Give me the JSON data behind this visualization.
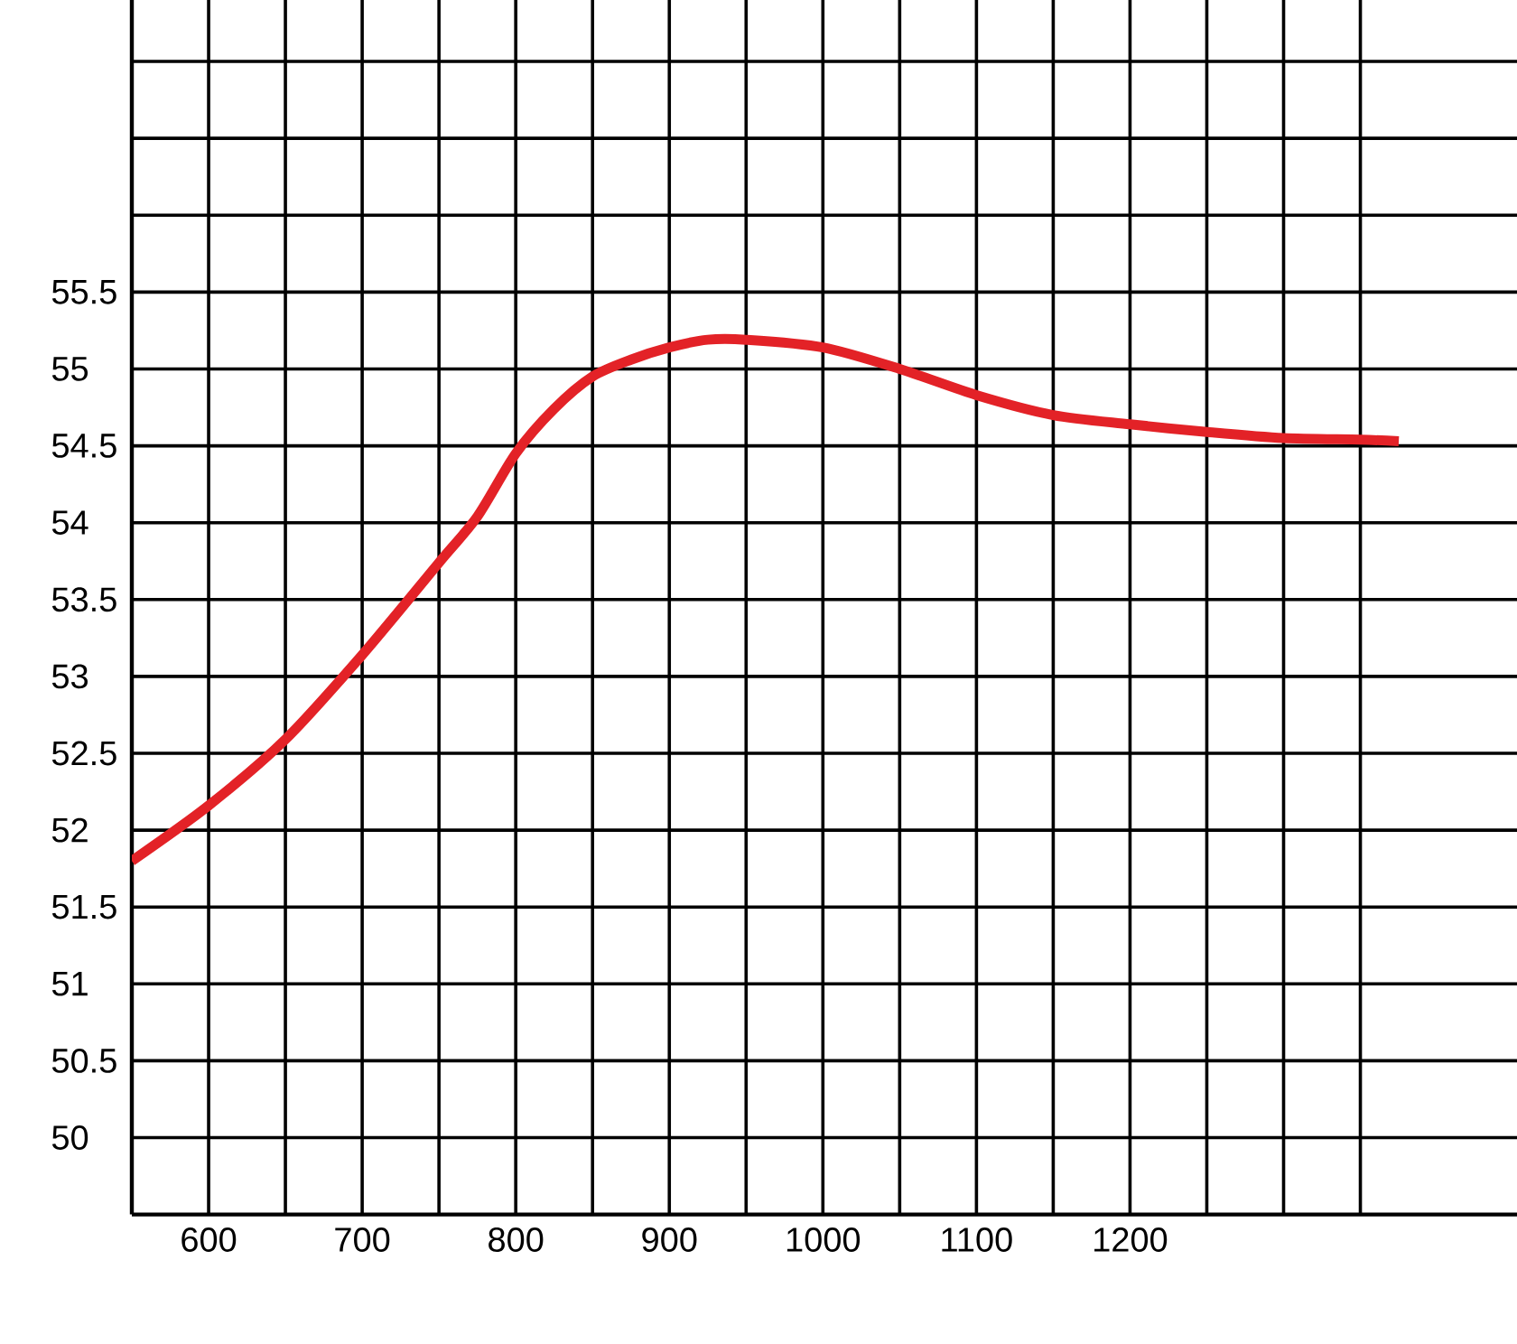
{
  "chart_data": {
    "type": "line",
    "x": [
      550,
      600,
      650,
      700,
      750,
      775,
      800,
      825,
      850,
      875,
      900,
      925,
      950,
      1000,
      1050,
      1100,
      1150,
      1200,
      1250,
      1300,
      1350,
      1375
    ],
    "series": [
      {
        "color": "#e32227",
        "values": [
          51.8,
          52.16,
          52.59,
          53.14,
          53.74,
          54.04,
          54.45,
          54.74,
          54.95,
          55.06,
          55.14,
          55.19,
          55.19,
          55.14,
          55.0,
          54.83,
          54.7,
          54.64,
          54.59,
          54.55,
          54.54,
          54.53
        ]
      }
    ],
    "xlim": [
      550,
      1452
    ],
    "ylim": [
      49.5,
      57.4
    ],
    "xticks": [
      600,
      {
        "value": 650,
        "label": null
      },
      700,
      {
        "value": 750,
        "label": null
      },
      800,
      {
        "value": 850,
        "label": null
      },
      900,
      {
        "value": 950,
        "label": null
      },
      1000,
      {
        "value": 1050,
        "label": null
      },
      1100,
      {
        "value": 1150,
        "label": null
      },
      1200,
      {
        "value": 1250,
        "label": null
      },
      {
        "value": 1300,
        "label": null
      },
      {
        "value": 1350,
        "label": null
      }
    ],
    "yticks": [
      50,
      50.5,
      51,
      51.5,
      52,
      52.5,
      53,
      53.5,
      54,
      54.5,
      55,
      55.5,
      {
        "value": 56,
        "label": null
      },
      {
        "value": 56.5,
        "label": null
      },
      {
        "value": 57,
        "label": null
      }
    ],
    "grid": true,
    "line_style": "solid"
  }
}
